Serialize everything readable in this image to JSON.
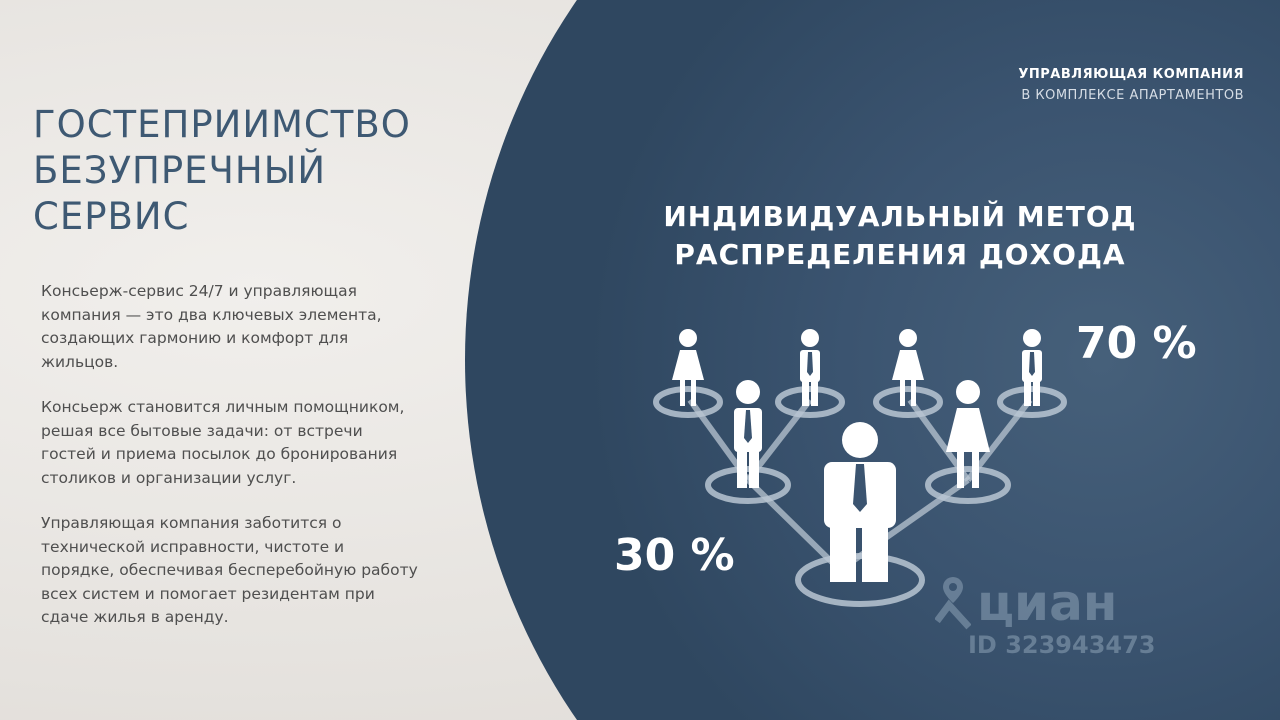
{
  "left": {
    "title_lines": [
      "ГОСТЕПРИИМСТВО",
      "БЕЗУПРЕЧНЫЙ",
      "СЕРВИС"
    ],
    "paragraphs": [
      "Консьерж-сервис 24/7 и управляющая компания — это два ключевых элемента, создающих гармонию и комфорт для жильцов.",
      "Консьерж становится личным помощником, решая все бытовые задачи: от встречи гостей и приема посылок до бронирования столиков и организации услуг.",
      "Управляющая компания заботится о технической исправности, чистоте и порядке, обеспечивая бесперебойную работу всех систем и помогает резидентам при сдаче жилья в аренду."
    ]
  },
  "right": {
    "corner_bold": "УПРАВЛЯЮЩАЯ КОМПАНИЯ",
    "corner_light": "В КОМПЛЕКСЕ АПАРТАМЕНТОВ",
    "headline_lines": [
      "ИНДИВИДУАЛЬНЫЙ МЕТОД",
      "РАСПРЕДЕЛЕНИЯ ДОХОДА"
    ],
    "percent_top": "70 %",
    "percent_bottom": "30 %"
  },
  "watermark": {
    "brand": "циан",
    "id": "ID 323943473",
    "icon": "map-pin-icon"
  },
  "colors": {
    "panel": "#3b5470",
    "title": "#3e5973",
    "text": "#4f4f4f"
  }
}
